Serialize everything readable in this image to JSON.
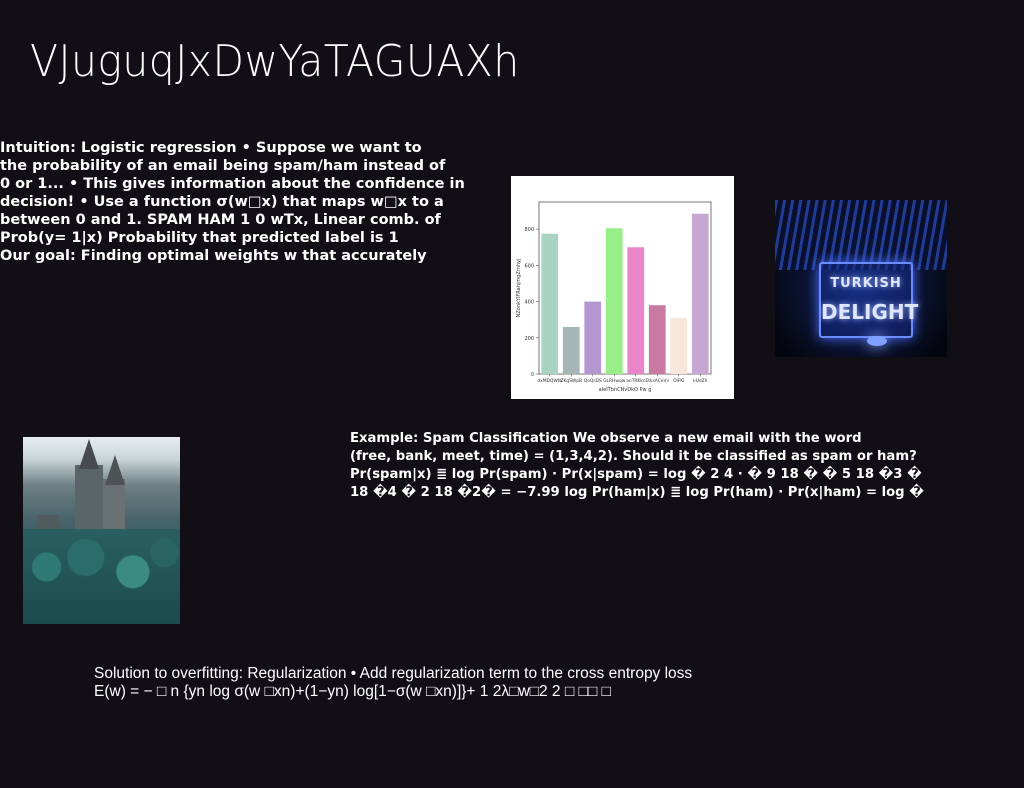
{
  "slide": {
    "title": "VJuguqJxDwYaTAGUAXh"
  },
  "intuition": {
    "text": "Intuition: Logistic regression • Suppose we want to\nthe probability of an email being spam/ham instead of\n0 or 1... • This gives information about the confidence in\ndecision! • Use a function σ(w□x) that maps w□x to a\nbetween 0 and 1. SPAM HAM 1 0 wTx, Linear comb. of\nProb(y= 1|x) Probability that predicted label is 1\nOur goal: Finding optimal weights w that accurately"
  },
  "example": {
    "text": "Example: Spam Classification We observe a new email with the word\n(free, bank, meet, time) = (1,3,4,2). Should it be classified as spam or ham?\nPr(spam|x) ≣ log Pr(spam) · Pr(x|spam) = log � 2 4 · � 9 18 � � 5 18 �3 �\n18 �4 � 2 18 �2� = −7.99 log Pr(ham|x) ≣ log Pr(ham) · Pr(x|ham) = log �"
  },
  "solution": {
    "text": "Solution to overfitting: Regularization • Add regularization term to the cross entropy loss\nE(w) = − □ n {yn log σ(w □xn)+(1−yn) log[1−σ(w □xn)]}+ 1 2λ□w□2 2 □ □□ □"
  },
  "images": {
    "neon_sign": {
      "line1": "TURKISH",
      "line2": "DELIGHT"
    }
  },
  "chart_data": {
    "type": "bar",
    "categories": [
      "dxMDQWtb",
      "ZKqSWpB",
      "QoQsDS",
      "GLRHwqw",
      "anTRKkc",
      "EtksACeVv",
      "OlFKi",
      "kUdZh"
    ],
    "values": [
      775,
      260,
      400,
      805,
      700,
      380,
      310,
      885
    ],
    "colors": [
      "#a9d4c3",
      "#a6b5b6",
      "#b497d1",
      "#98ee88",
      "#ea85c9",
      "#c97aa3",
      "#f7e6d9",
      "#c7a7d2"
    ],
    "xlabel": "aIeITbnCNvDkO Pw g",
    "ylabel": "NZonkYIFRahjmgZrnhyj",
    "ylim": [
      0,
      950
    ],
    "yticks": [
      0,
      200,
      400,
      600,
      800
    ],
    "grid": false
  }
}
